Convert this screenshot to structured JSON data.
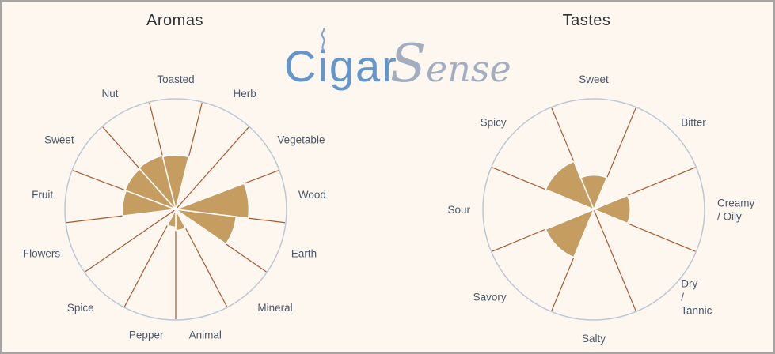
{
  "page": {
    "background": "#fdf7f0",
    "border_color": "#a6a3a0"
  },
  "logo": {
    "word1": "Cigar",
    "word2_initial": "S",
    "word2_rest": "ense",
    "word1_color": "#6495cb",
    "word2_color": "#a2aec0",
    "smoke_icon": "cigar-smoke-swirl"
  },
  "style": {
    "fill_color": "#c69d61",
    "wedge_gap_color": "#ffffff",
    "spoke_color": "#a9572e",
    "ring_color": "#bcc7d6",
    "label_color": "#4b5768",
    "title_color": "#2e3338"
  },
  "chart_data": [
    {
      "id": "aromas",
      "type": "polar-area",
      "title": "Aromas",
      "categories": [
        "Toasted",
        "Herb",
        "Vegetable",
        "Wood",
        "Earth",
        "Mineral",
        "Animal",
        "Pepper",
        "Spice",
        "Flowers",
        "Fruit",
        "Sweet",
        "Nut"
      ],
      "values": [
        49,
        0,
        0,
        66,
        55,
        0,
        19,
        16,
        0,
        0,
        48,
        49,
        50
      ],
      "label_lines": [
        [
          "Toasted"
        ],
        [
          "Herb"
        ],
        [
          "Vegetable"
        ],
        [
          "Wood"
        ],
        [
          "Earth"
        ],
        [
          "Mineral"
        ],
        [
          "Animal"
        ],
        [
          "Pepper"
        ],
        [
          "Spice"
        ],
        [
          "Flowers"
        ],
        [
          "Fruit"
        ],
        [
          "Sweet"
        ],
        [
          "Nut"
        ]
      ],
      "units": "percent of full radius (estimated from pixels)",
      "ylim": [
        0,
        100
      ],
      "layout": "13 equal sectors, first sector centered at top, clockwise; outer ring grid only; no legend"
    },
    {
      "id": "tastes",
      "type": "polar-area",
      "title": "Tastes",
      "categories": [
        "Sweet",
        "Bitter",
        "Creamy / Oily",
        "Dry / Tannic",
        "Salty",
        "Savory",
        "Sour",
        "Spicy"
      ],
      "values": [
        31,
        0,
        33,
        0,
        0,
        47,
        0,
        47
      ],
      "label_lines": [
        [
          "Sweet"
        ],
        [
          "Bitter"
        ],
        [
          "Creamy",
          "/ Oily"
        ],
        [
          "Dry",
          "/",
          "Tannic"
        ],
        [
          "Salty"
        ],
        [
          "Savory"
        ],
        [
          "Sour"
        ],
        [
          "Spicy"
        ]
      ],
      "units": "percent of full radius (estimated from pixels)",
      "ylim": [
        0,
        100
      ],
      "layout": "8 equal sectors, first sector centered at top, clockwise; outer ring grid only; no legend"
    }
  ]
}
